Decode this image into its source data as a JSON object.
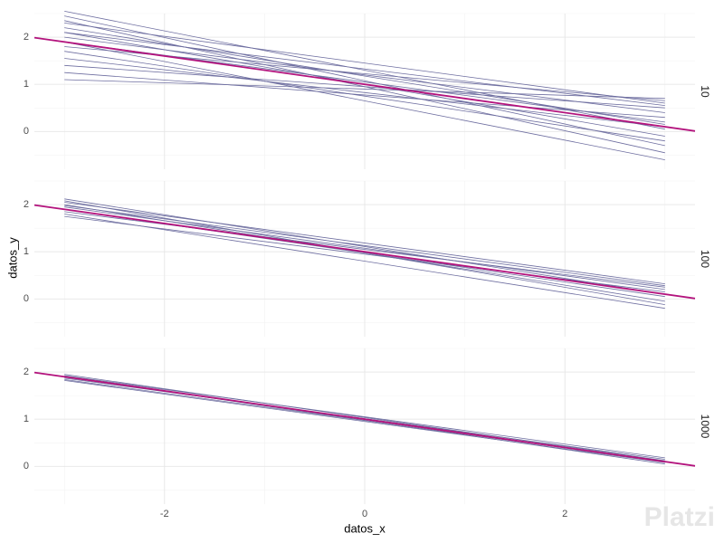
{
  "chart_data": {
    "type": "line",
    "x_label": "datos_x",
    "y_label": "datos_y",
    "xlim": [
      -3.3,
      3.3
    ],
    "xticks": [
      -2,
      0,
      2
    ],
    "minor_xticks": [
      -3,
      -1,
      1,
      3
    ],
    "ylim": [
      -0.8,
      2.5
    ],
    "yticks": [
      0,
      1,
      2
    ],
    "minor_yticks": [
      -0.5,
      0.5,
      1.5,
      2.5
    ],
    "grid": true,
    "line_color": "#6e6ea0",
    "reference_color": "#b3137d",
    "facets": [
      {
        "label": "10",
        "lines": [
          {
            "x": [
              -3,
              3
            ],
            "values": [
              2.55,
              0.05
            ]
          },
          {
            "x": [
              -3,
              3
            ],
            "values": [
              2.45,
              -0.3
            ]
          },
          {
            "x": [
              -3,
              3
            ],
            "values": [
              2.3,
              0.6
            ]
          },
          {
            "x": [
              -3,
              3
            ],
            "values": [
              2.2,
              0.15
            ]
          },
          {
            "x": [
              -3,
              3
            ],
            "values": [
              2.1,
              -0.1
            ]
          },
          {
            "x": [
              -3,
              3
            ],
            "values": [
              2.0,
              0.4
            ]
          },
          {
            "x": [
              -3,
              3
            ],
            "values": [
              1.9,
              0.2
            ]
          },
          {
            "x": [
              -3,
              3
            ],
            "values": [
              1.8,
              0.65
            ]
          },
          {
            "x": [
              -3,
              3
            ],
            "values": [
              1.7,
              -0.2
            ]
          },
          {
            "x": [
              -3,
              3
            ],
            "values": [
              1.55,
              0.1
            ]
          },
          {
            "x": [
              -3,
              3
            ],
            "values": [
              1.4,
              0.5
            ]
          },
          {
            "x": [
              -3,
              3
            ],
            "values": [
              1.25,
              0.3
            ]
          },
          {
            "x": [
              -3,
              3
            ],
            "values": [
              1.1,
              0.7
            ]
          },
          {
            "x": [
              -3,
              3
            ],
            "values": [
              1.9,
              -0.6
            ]
          },
          {
            "x": [
              -3,
              3
            ],
            "values": [
              2.1,
              0.55
            ]
          },
          {
            "x": [
              -3,
              3
            ],
            "values": [
              2.35,
              -0.45
            ]
          }
        ],
        "reference": {
          "x": [
            -3.3,
            3.3
          ],
          "values": [
            1.99,
            0.01
          ]
        }
      },
      {
        "label": "100",
        "lines": [
          {
            "x": [
              -3,
              3
            ],
            "values": [
              2.12,
              0.1
            ]
          },
          {
            "x": [
              -3,
              3
            ],
            "values": [
              2.05,
              0.32
            ]
          },
          {
            "x": [
              -3,
              3
            ],
            "values": [
              2.0,
              -0.05
            ]
          },
          {
            "x": [
              -3,
              3
            ],
            "values": [
              1.95,
              0.2
            ]
          },
          {
            "x": [
              -3,
              3
            ],
            "values": [
              1.9,
              0.05
            ]
          },
          {
            "x": [
              -3,
              3
            ],
            "values": [
              1.85,
              0.25
            ]
          },
          {
            "x": [
              -3,
              3
            ],
            "values": [
              1.8,
              -0.2
            ]
          },
          {
            "x": [
              -3,
              3
            ],
            "values": [
              1.75,
              0.15
            ]
          },
          {
            "x": [
              -3,
              3
            ],
            "values": [
              2.08,
              -0.12
            ]
          },
          {
            "x": [
              -3,
              3
            ],
            "values": [
              1.98,
              0.28
            ]
          }
        ],
        "reference": {
          "x": [
            -3.3,
            3.3
          ],
          "values": [
            1.99,
            0.01
          ]
        }
      },
      {
        "label": "1000",
        "lines": [
          {
            "x": [
              -3,
              3
            ],
            "values": [
              1.95,
              0.12
            ]
          },
          {
            "x": [
              -3,
              3
            ],
            "values": [
              1.92,
              0.18
            ]
          },
          {
            "x": [
              -3,
              3
            ],
            "values": [
              1.9,
              0.05
            ]
          },
          {
            "x": [
              -3,
              3
            ],
            "values": [
              1.87,
              0.15
            ]
          },
          {
            "x": [
              -3,
              3
            ],
            "values": [
              1.84,
              0.1
            ]
          },
          {
            "x": [
              -3,
              3
            ],
            "values": [
              1.82,
              0.08
            ]
          }
        ],
        "reference": {
          "x": [
            -3.3,
            3.3
          ],
          "values": [
            1.99,
            0.01
          ]
        }
      }
    ],
    "watermark": "Platzi"
  }
}
